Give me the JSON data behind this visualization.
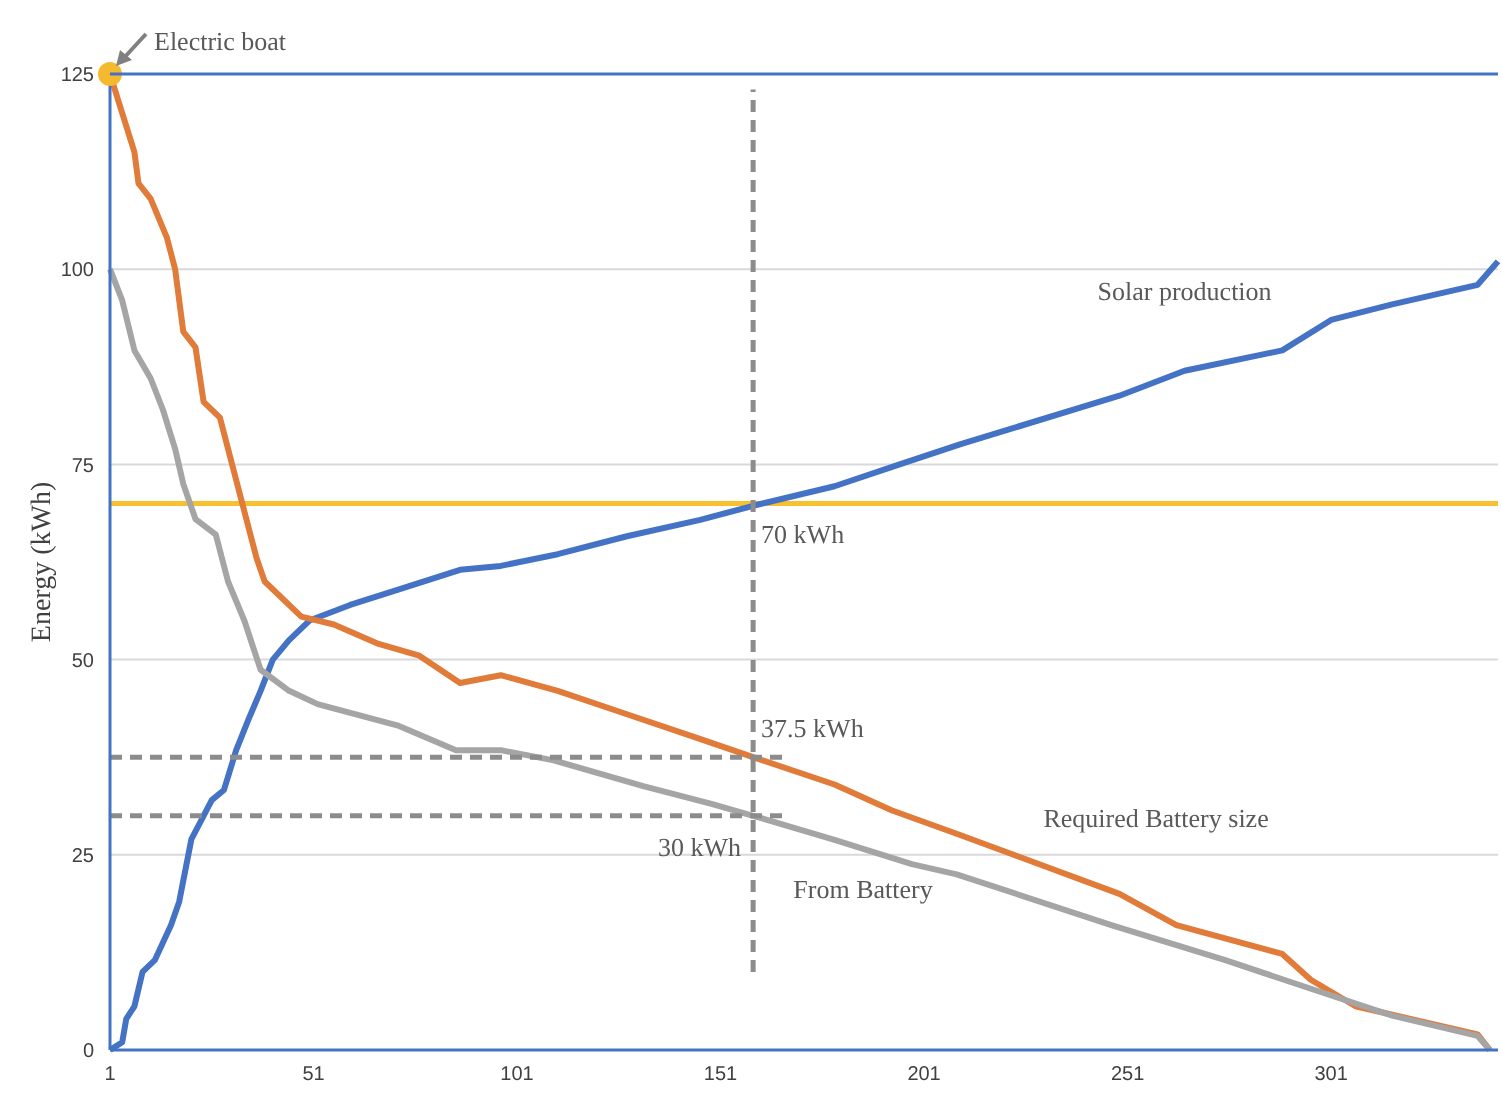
{
  "chart_data": {
    "type": "line",
    "ylabel": "Energy (kWh)",
    "xlim": [
      1,
      342
    ],
    "xticks": [
      1,
      51,
      101,
      151,
      201,
      251,
      301
    ],
    "ylim": [
      0,
      125
    ],
    "yticks": [
      0,
      25,
      50,
      75,
      100,
      125
    ],
    "grid": "y",
    "legend": false,
    "marker": "none",
    "line_style": "solid",
    "series": [
      {
        "name": "Solar production",
        "color": "#4472c4",
        "x": [
          1,
          4,
          5,
          7,
          9,
          12,
          16,
          18,
          21,
          23,
          26,
          29,
          32,
          35,
          38,
          41,
          45,
          50,
          60,
          72,
          87,
          97,
          111,
          128,
          146,
          159,
          179,
          195,
          210,
          249,
          265,
          289,
          301,
          316,
          337,
          342
        ],
        "values": [
          0,
          1,
          4,
          5.6,
          10,
          11.5,
          16,
          19,
          27,
          29,
          32,
          33.3,
          38.4,
          42.3,
          46,
          50,
          52.5,
          55,
          57,
          59,
          61.5,
          62,
          63.5,
          65.8,
          67.9,
          69.7,
          72.2,
          75,
          77.6,
          83.8,
          87,
          89.6,
          93.5,
          95.5,
          98,
          101
        ]
      },
      {
        "name": "Required Battery size",
        "color": "#e07b39",
        "x": [
          1,
          4,
          7,
          8,
          11,
          15,
          17,
          19,
          22,
          24,
          28,
          31,
          34,
          37,
          39,
          48,
          56,
          67,
          77,
          87,
          97,
          111,
          128,
          145,
          159,
          179,
          193,
          209,
          249,
          263,
          289,
          296,
          307,
          337,
          340
        ],
        "values": [
          125,
          120,
          115,
          111,
          109,
          104,
          100,
          92,
          90,
          83,
          81,
          75,
          69,
          63,
          60,
          55.5,
          54.5,
          52,
          50.5,
          47,
          48,
          46,
          43,
          40,
          37.5,
          34,
          30.7,
          27.7,
          20,
          16,
          12.3,
          9,
          5.6,
          2,
          0
        ]
      },
      {
        "name": "From Battery",
        "color": "#a5a5a5",
        "x": [
          1,
          4,
          7,
          11,
          14,
          17,
          19,
          22,
          27,
          30,
          34,
          38,
          45,
          52,
          72,
          86,
          97,
          110,
          132,
          149,
          159,
          179,
          198,
          209,
          247,
          275,
          294,
          316,
          337,
          340
        ],
        "values": [
          100,
          96,
          89.6,
          86,
          82,
          77,
          72.5,
          68,
          66,
          60,
          55,
          48.7,
          46,
          44.3,
          41.5,
          38.4,
          38.4,
          37.1,
          33.8,
          31.5,
          30,
          26.9,
          23.8,
          22.5,
          16,
          11.5,
          8.2,
          4.4,
          1.8,
          0
        ]
      },
      {
        "color": "#8c8c8c",
        "line_style": "dashed",
        "x": [
          159,
          159
        ],
        "values": [
          10,
          123
        ]
      },
      {
        "color": "#8c8c8c",
        "line_style": "dashed",
        "x": [
          1,
          168
        ],
        "values": [
          37.5,
          37.5
        ]
      },
      {
        "color": "#8c8c8c",
        "line_style": "dashed",
        "x": [
          1,
          168
        ],
        "values": [
          30,
          30
        ]
      },
      {
        "type": "scatter",
        "marker": "circle",
        "color": "#f5b92e",
        "x": [
          1
        ],
        "values": [
          125
        ]
      }
    ],
    "ref_lines": [
      {
        "axis": "y",
        "value": 70,
        "color": "#f7c02e"
      }
    ],
    "annotations": [
      "Electric boat",
      "70 kWh",
      "37.5 kWh",
      "30 kWh"
    ]
  }
}
